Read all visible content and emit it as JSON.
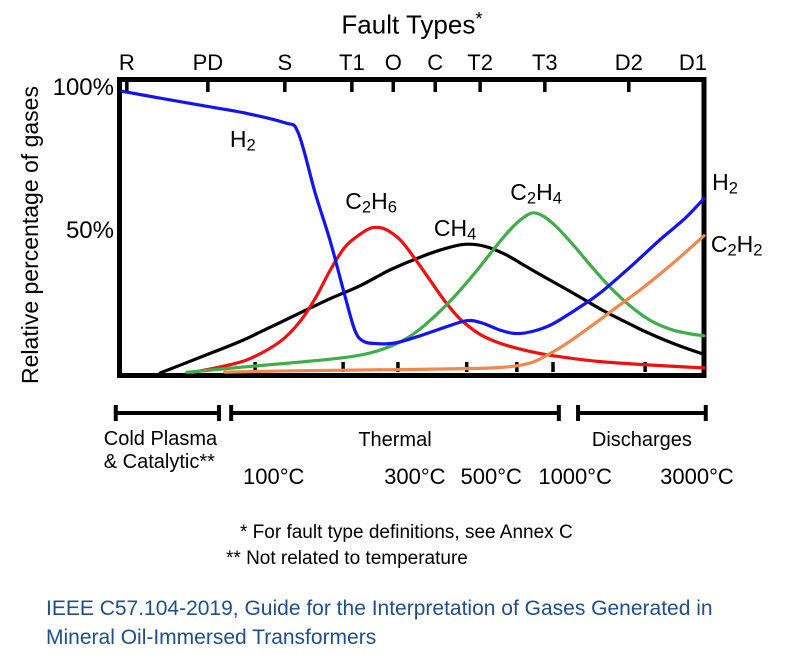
{
  "chart_data": {
    "type": "line",
    "title": "Fault Types^*",
    "ylabel": "Relative percentage of gases",
    "ylim": [
      0,
      100
    ],
    "grid": false,
    "legend": "labels drawn next to curves",
    "x_axis_note": "x positions are 0-100 fractions of plot width; top axis is categorical fault types, bottom scale is temperature (non-linear)",
    "y_tick_labels": [
      {
        "label": "100%",
        "value": 100
      },
      {
        "label": "50%",
        "value": 50
      }
    ],
    "fault_type_ticks": [
      {
        "label": "R",
        "pos": 1.0,
        "tick": true
      },
      {
        "label": "PD",
        "pos": 14.9,
        "tick": true
      },
      {
        "label": "S",
        "pos": 28.1,
        "tick": true
      },
      {
        "label": "T1",
        "pos": 39.6,
        "tick": true
      },
      {
        "label": "O",
        "pos": 46.7,
        "tick": true
      },
      {
        "label": "C",
        "pos": 53.9,
        "tick": true
      },
      {
        "label": "T2",
        "pos": 61.6,
        "tick": true
      },
      {
        "label": "T3",
        "pos": 72.7,
        "tick": true
      },
      {
        "label": "D2",
        "pos": 87.1,
        "tick": true
      },
      {
        "label": "D1",
        "pos": 98.1,
        "tick": false
      }
    ],
    "bottom_tick_positions": [
      23.0,
      38.1,
      47.5,
      59.3,
      67.9,
      74.1,
      89.9
    ],
    "temperature_labels": [
      {
        "label": "100°C",
        "pos": 26.2
      },
      {
        "label": "300°C",
        "pos": 50.4
      },
      {
        "label": "500°C",
        "pos": 63.5
      },
      {
        "label": "1000°C",
        "pos": 77.9
      },
      {
        "label": "3000°C",
        "pos": 98.8
      }
    ],
    "region_brackets": [
      {
        "label_lines": [
          "Cold Plasma",
          "& Catalytic**"
        ],
        "from_pos": -0.9,
        "to_pos": 16.8
      },
      {
        "label_lines": [
          "Thermal"
        ],
        "from_pos": 18.9,
        "to_pos": 75.1
      },
      {
        "label_lines": [
          "Discharges"
        ],
        "from_pos": 78.4,
        "to_pos": 100.3
      }
    ],
    "series": [
      {
        "name": "CH4",
        "formula": "CH_4",
        "color": "#000000",
        "points": [
          [
            6.7,
            0
          ],
          [
            13.6,
            5.5
          ],
          [
            20.4,
            11
          ],
          [
            25.6,
            16
          ],
          [
            30.7,
            21
          ],
          [
            35.9,
            26
          ],
          [
            41,
            30.5
          ],
          [
            46.1,
            36
          ],
          [
            51.3,
            40.5
          ],
          [
            55.6,
            43.5
          ],
          [
            59,
            45
          ],
          [
            62.4,
            44.3
          ],
          [
            65.9,
            41.5
          ],
          [
            69.3,
            37.5
          ],
          [
            72.7,
            33.5
          ],
          [
            76.2,
            29.5
          ],
          [
            79.6,
            25.5
          ],
          [
            83,
            21.5
          ],
          [
            86.4,
            18
          ],
          [
            89.9,
            14.5
          ],
          [
            93.3,
            11.5
          ],
          [
            96.7,
            8.8
          ],
          [
            100,
            6.5
          ]
        ]
      },
      {
        "name": "C2H6",
        "formula": "C_2H_6",
        "color": "#ee1111",
        "points": [
          [
            12.3,
            0.2
          ],
          [
            17.8,
            2.5
          ],
          [
            22.1,
            5
          ],
          [
            27.3,
            11
          ],
          [
            30.7,
            18
          ],
          [
            33.3,
            26
          ],
          [
            35.9,
            36
          ],
          [
            38.4,
            44
          ],
          [
            41,
            48.5
          ],
          [
            43.1,
            50.8
          ],
          [
            45.3,
            50.3
          ],
          [
            47.9,
            46.5
          ],
          [
            50.4,
            40
          ],
          [
            53,
            32.5
          ],
          [
            55.6,
            25
          ],
          [
            58.1,
            19
          ],
          [
            61.2,
            14
          ],
          [
            64.2,
            11
          ],
          [
            67.6,
            8.8
          ],
          [
            71.9,
            6.8
          ],
          [
            77,
            5.2
          ],
          [
            82.2,
            4
          ],
          [
            89,
            3
          ],
          [
            95,
            2.3
          ],
          [
            100,
            1.8
          ]
        ]
      },
      {
        "name": "C2H4",
        "formula": "C_2H_4",
        "color": "#3fae49",
        "points": [
          [
            11.3,
            0.2
          ],
          [
            20.4,
            2
          ],
          [
            29,
            3.5
          ],
          [
            37.6,
            5.2
          ],
          [
            42.7,
            7
          ],
          [
            47,
            10
          ],
          [
            50.4,
            14
          ],
          [
            53.9,
            20
          ],
          [
            57.3,
            27
          ],
          [
            60.7,
            35
          ],
          [
            64.2,
            44
          ],
          [
            66.7,
            50
          ],
          [
            68.8,
            54
          ],
          [
            70.7,
            56
          ],
          [
            72.7,
            54.5
          ],
          [
            75,
            50.5
          ],
          [
            77.9,
            44
          ],
          [
            80.8,
            37
          ],
          [
            83.9,
            30
          ],
          [
            87.3,
            23.5
          ],
          [
            90.7,
            18.5
          ],
          [
            94.2,
            15.3
          ],
          [
            97.3,
            13.8
          ],
          [
            100,
            13
          ]
        ]
      },
      {
        "name": "H2",
        "formula": "H_2",
        "color": "#1414ee",
        "points": [
          [
            0.2,
            98.5
          ],
          [
            7,
            96
          ],
          [
            14,
            93.5
          ],
          [
            21,
            91
          ],
          [
            28.1,
            87.5
          ],
          [
            30.4,
            84
          ],
          [
            33.3,
            63
          ],
          [
            35.9,
            46
          ],
          [
            38.4,
            27
          ],
          [
            40.1,
            15
          ],
          [
            41.5,
            11.2
          ],
          [
            43.6,
            10.3
          ],
          [
            47,
            10.5
          ],
          [
            51.3,
            13
          ],
          [
            55.6,
            16
          ],
          [
            59.3,
            18.3
          ],
          [
            61.9,
            17.5
          ],
          [
            65,
            15
          ],
          [
            67.6,
            13.8
          ],
          [
            70.5,
            14.5
          ],
          [
            73.9,
            17
          ],
          [
            77.9,
            22
          ],
          [
            82.2,
            28
          ],
          [
            87.3,
            37
          ],
          [
            92.4,
            46.5
          ],
          [
            96.7,
            54
          ],
          [
            100,
            61
          ]
        ]
      },
      {
        "name": "C2H2",
        "formula": "C_2H_2",
        "color": "#f0884e",
        "points": [
          [
            17.8,
            0.3
          ],
          [
            30.7,
            0.8
          ],
          [
            47.9,
            1.2
          ],
          [
            61.6,
            1.6
          ],
          [
            66.7,
            2.2
          ],
          [
            70.2,
            3.5
          ],
          [
            72.7,
            5.8
          ],
          [
            76.2,
            10
          ],
          [
            80.4,
            16
          ],
          [
            84.7,
            22.5
          ],
          [
            89,
            29
          ],
          [
            93.3,
            36
          ],
          [
            96.7,
            42
          ],
          [
            100,
            48
          ]
        ]
      }
    ],
    "curve_labels": [
      {
        "formula": "H_2",
        "pos": 20.9,
        "pct": 81.5
      },
      {
        "formula": "C_2H_6",
        "pos": 42.9,
        "pct": 59.8
      },
      {
        "formula": "CH_4",
        "pos": 57.3,
        "pct": 50.3
      },
      {
        "formula": "C_2H_4",
        "pos": 71.2,
        "pct": 62.9
      },
      {
        "formula": "H_2",
        "pos": 103.6,
        "pct": 66.4
      },
      {
        "formula": "C_2H_2",
        "pos": 105.6,
        "pct": 44.8
      }
    ]
  },
  "footnotes": [
    "* For fault type definitions, see Annex C",
    "** Not related to temperature"
  ],
  "caption": {
    "text": "IEEE C57.104-2019, Guide for the Interpretation of Gases Generated in Mineral Oil-Immersed Transformers",
    "color": "#1f4e8c"
  }
}
